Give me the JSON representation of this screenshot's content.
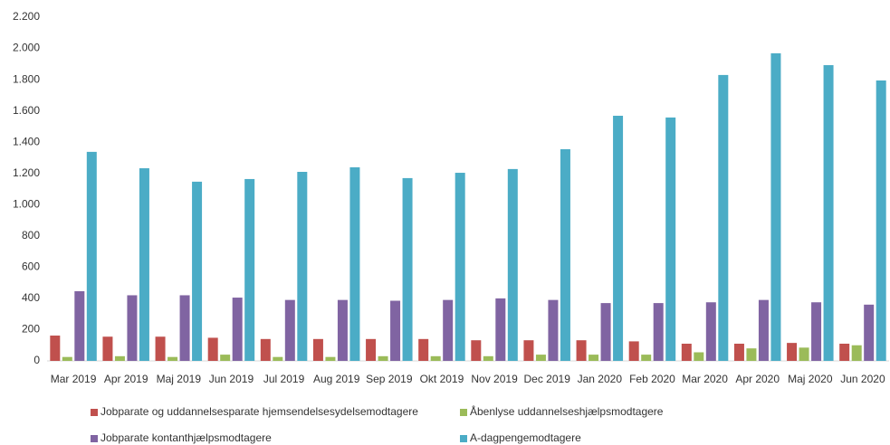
{
  "chart_data": {
    "type": "bar",
    "categories": [
      "Mar 2019",
      "Apr 2019",
      "Maj 2019",
      "Jun 2019",
      "Jul 2019",
      "Aug 2019",
      "Sep 2019",
      "Okt 2019",
      "Nov 2019",
      "Dec 2019",
      "Jan 2020",
      "Feb 2020",
      "Mar 2020",
      "Apr 2020",
      "Maj 2020",
      "Jun 2020"
    ],
    "series": [
      {
        "name": "Jobparate og uddannelsesparate hjemsendelsesydelsemodtagere",
        "color": "#c0504d",
        "values": [
          162,
          155,
          155,
          148,
          140,
          140,
          140,
          140,
          132,
          132,
          132,
          125,
          110,
          110,
          115,
          110
        ]
      },
      {
        "name": "Åbenlyse uddannelseshjælpsmodtagere",
        "color": "#9bbb59",
        "values": [
          25,
          30,
          25,
          40,
          25,
          25,
          30,
          30,
          30,
          40,
          40,
          40,
          55,
          80,
          85,
          100
        ]
      },
      {
        "name": "Jobparate kontanthjælpsmodtagere",
        "color": "#8064a2",
        "values": [
          446,
          420,
          420,
          405,
          390,
          390,
          385,
          390,
          400,
          390,
          370,
          370,
          375,
          390,
          375,
          360
        ]
      },
      {
        "name": "A-dagpengemodtagere",
        "color": "#4bacc6",
        "values": [
          1338,
          1233,
          1147,
          1164,
          1210,
          1239,
          1170,
          1204,
          1228,
          1355,
          1569,
          1558,
          1830,
          1969,
          1893,
          1795
        ]
      }
    ],
    "ylim": [
      0,
      2200
    ],
    "yticks": [
      0,
      200,
      400,
      600,
      800,
      {
        "value": 1000,
        "label": "1.000"
      },
      {
        "value": 1200,
        "label": "1.200"
      },
      {
        "value": 1400,
        "label": "1.400"
      },
      {
        "value": 1600,
        "label": "1.600"
      },
      {
        "value": 1800,
        "label": "1.800"
      },
      {
        "value": 2000,
        "label": "2.000"
      },
      {
        "value": 2200,
        "label": "2.200"
      }
    ],
    "grid": false,
    "legend": "bottom"
  }
}
